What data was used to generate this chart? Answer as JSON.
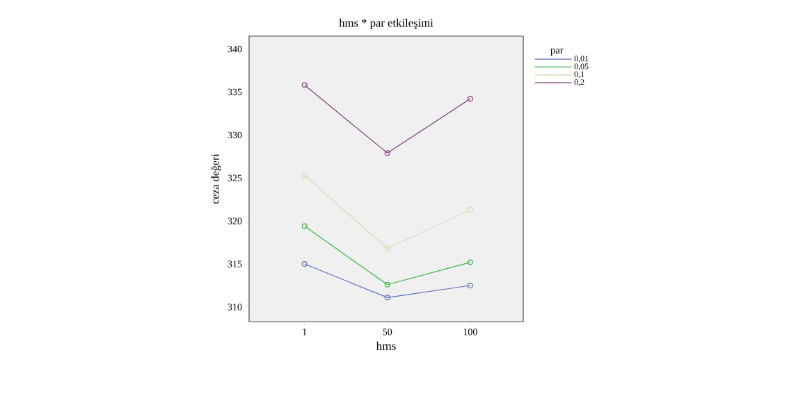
{
  "chart_data": {
    "type": "line",
    "title": "hms * par etkileşimi",
    "xlabel": "hms",
    "ylabel": "ceza değeri",
    "legend_title": "par",
    "categories": [
      "1",
      "50",
      "100"
    ],
    "series": [
      {
        "name": "0,01",
        "color": "#5f6fb8",
        "values": [
          315.0,
          311.1,
          312.5
        ]
      },
      {
        "name": "0,05",
        "color": "#3cb44a",
        "values": [
          319.4,
          312.6,
          315.2
        ]
      },
      {
        "name": "0,1",
        "color": "#dcd9b0",
        "values": [
          325.3,
          316.8,
          321.3
        ]
      },
      {
        "name": "0,2",
        "color": "#7b3a7a",
        "values": [
          335.8,
          327.9,
          334.2
        ]
      }
    ],
    "ylim": [
      308.3,
      341.5
    ],
    "yticks": [
      310,
      315,
      320,
      325,
      330,
      335,
      340
    ],
    "grid": false,
    "legend": "right",
    "marker": "circle",
    "line_style": "solid"
  }
}
